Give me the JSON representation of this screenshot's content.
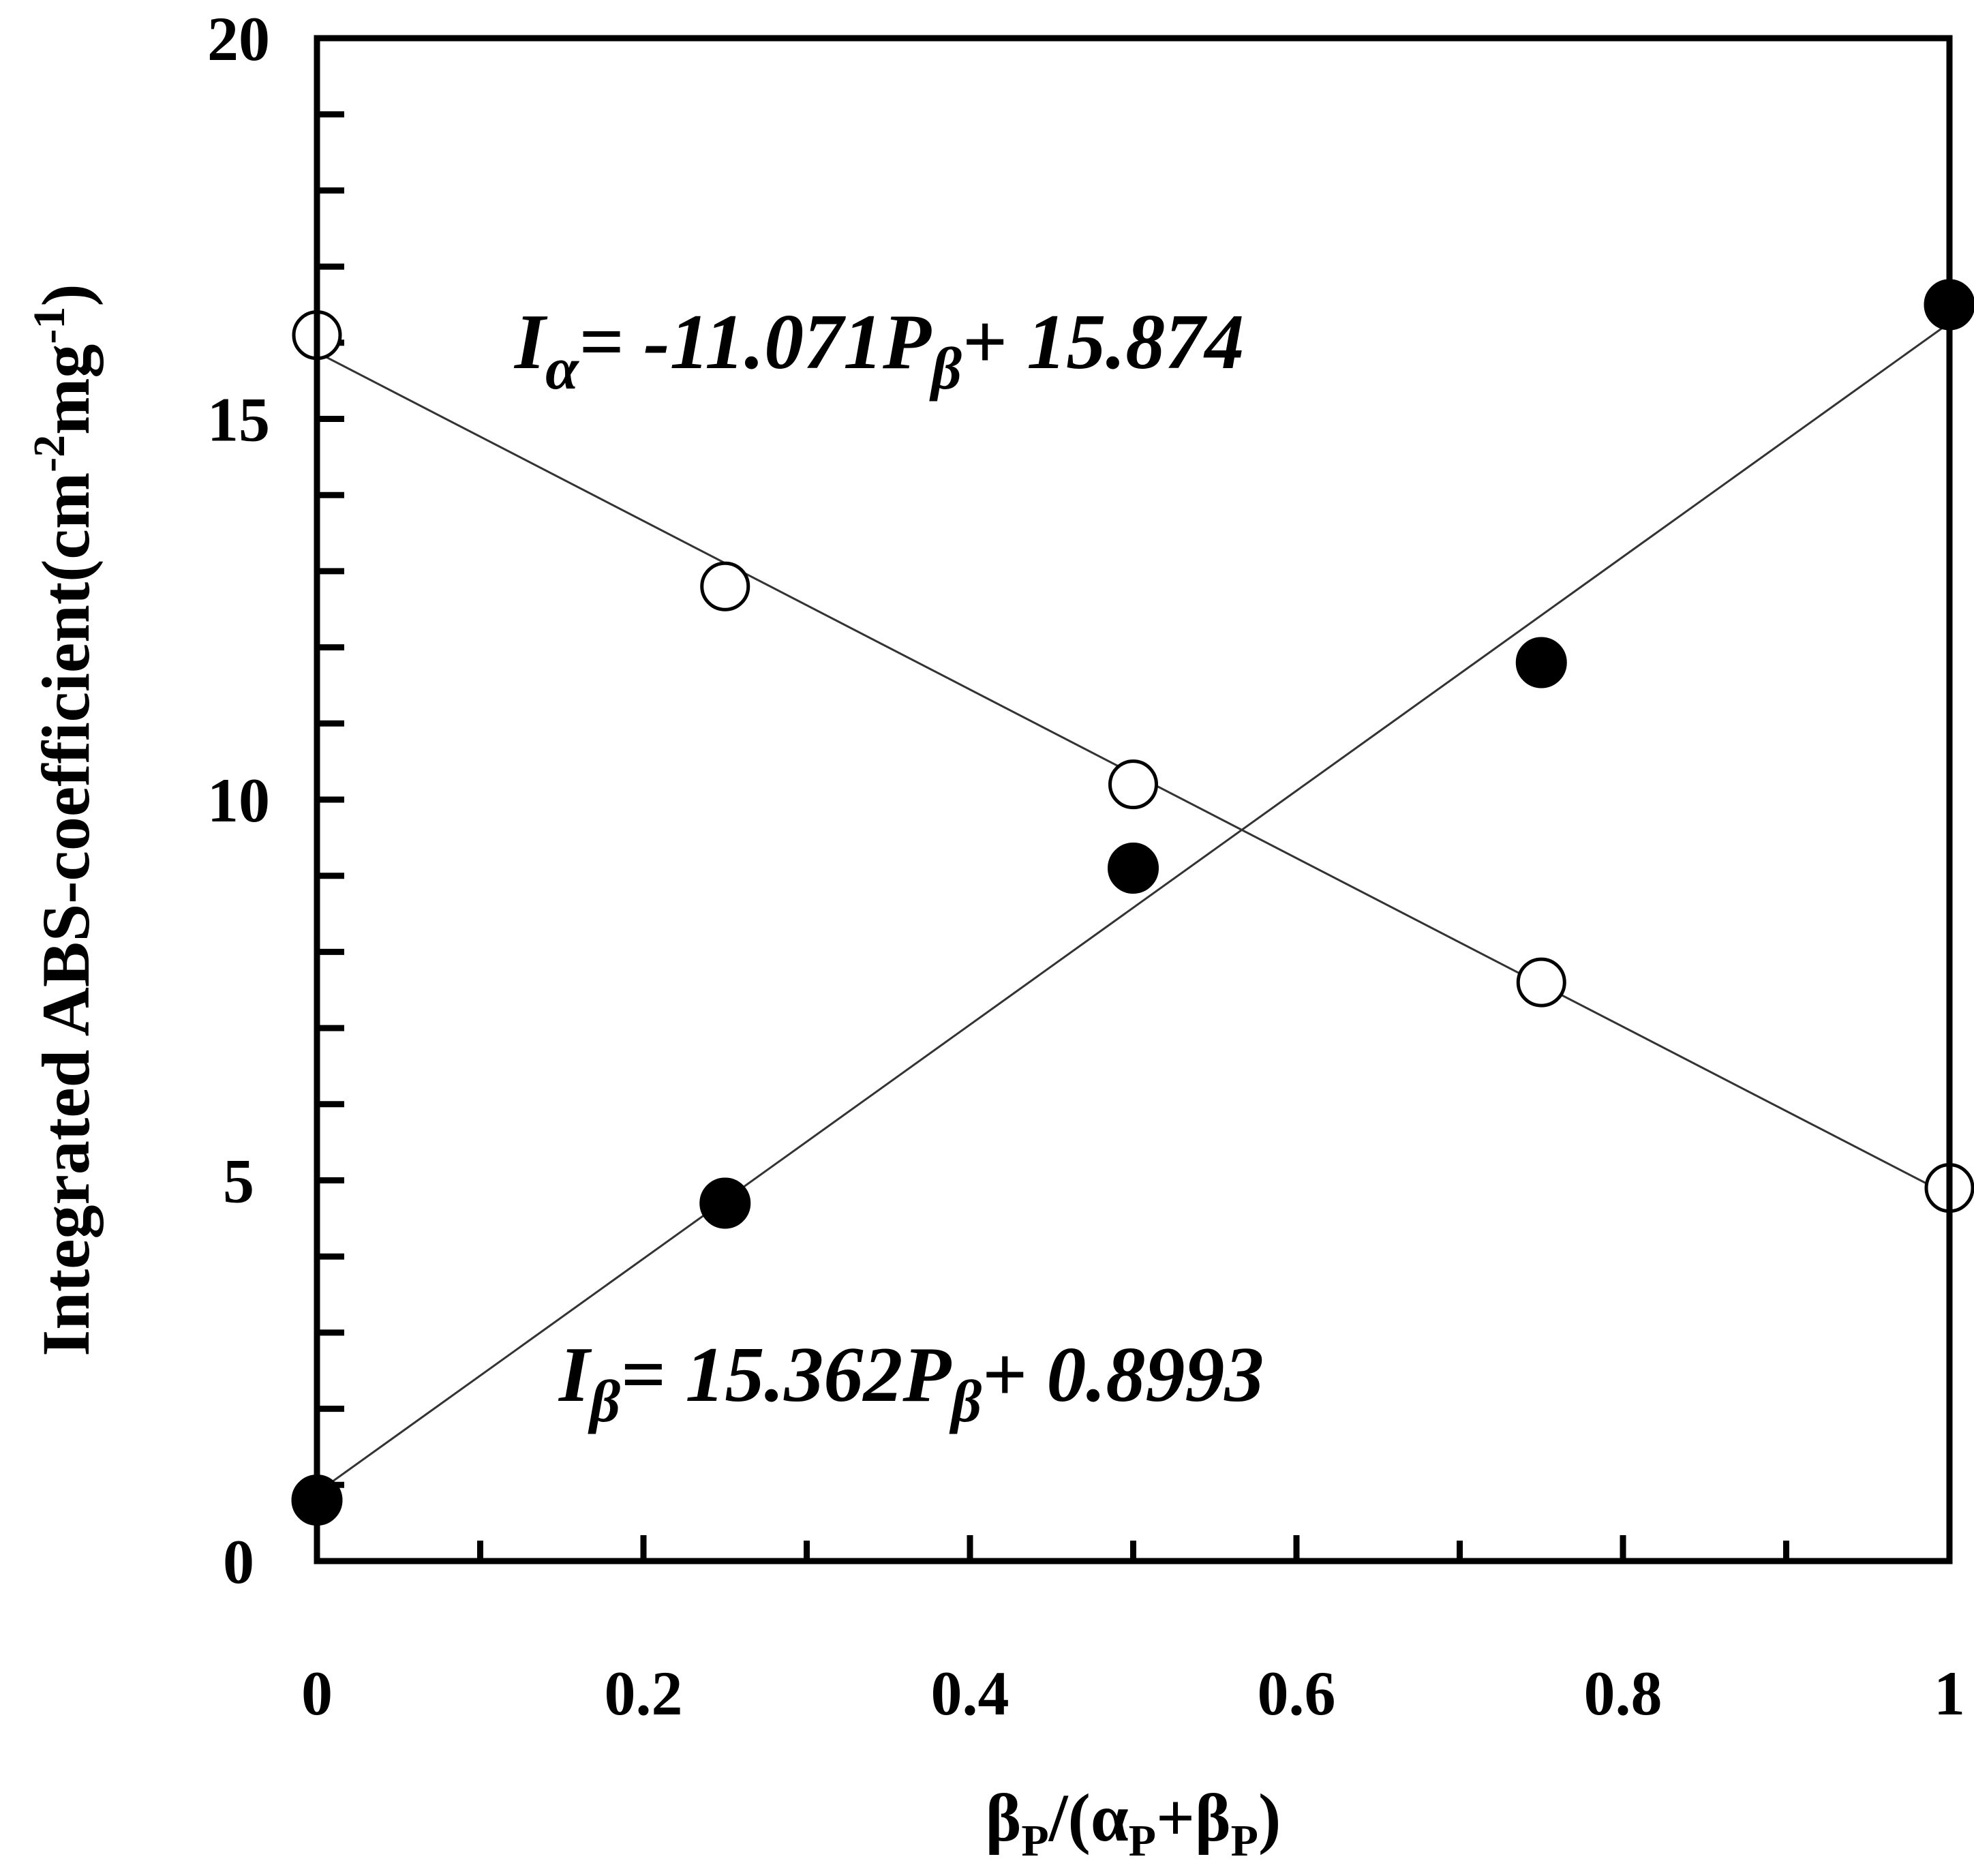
{
  "chart_data": {
    "type": "scatter",
    "xlabel": {
      "main": "β",
      "sub1": "P",
      "mid": "/(α",
      "sub2": "P",
      "plus": "+β",
      "sub3": "P",
      "close": ")"
    },
    "ylabel": {
      "main": "Integrated ABS-coefficient(cm",
      "exp1": "-2",
      "mid": "mg",
      "exp2": "-1",
      "close": ")"
    },
    "xlim": [
      0,
      1
    ],
    "ylim": [
      0,
      20
    ],
    "x_ticks": [
      0,
      0.2,
      0.4,
      0.6,
      0.8,
      1
    ],
    "x_tick_labels": [
      "0",
      "0.2",
      "0.4",
      "0.6",
      "0.8",
      "1"
    ],
    "x_minor_step": 0.1,
    "y_ticks": [
      0,
      5,
      10,
      15,
      20
    ],
    "y_tick_labels": [
      "0",
      "5",
      "10",
      "15",
      "20"
    ],
    "y_minor_step": 1,
    "grid": false,
    "series": [
      {
        "marker": "open-circle",
        "x": [
          0,
          0.25,
          0.5,
          0.75,
          1
        ],
        "y": [
          16.1,
          12.8,
          10.2,
          7.6,
          4.9
        ],
        "fit": {
          "slope": -11.071,
          "intercept": 15.874
        }
      },
      {
        "marker": "filled-circle",
        "x": [
          0,
          0.25,
          0.5,
          0.75,
          1
        ],
        "y": [
          0.8,
          4.7,
          9.1,
          11.8,
          16.5
        ],
        "fit": {
          "slope": 15.362,
          "intercept": 0.8993
        }
      }
    ],
    "annotations": [
      {
        "id": "alpha-eq",
        "I": "I",
        "sub": "α",
        "text1": "= -11.071P",
        "sub2": "β",
        "text2": "+ 15.874"
      },
      {
        "id": "beta-eq",
        "I": "I",
        "sub": "β",
        "text1": "= 15.362P",
        "sub2": "β",
        "text2": "+ 0.8993"
      }
    ]
  }
}
